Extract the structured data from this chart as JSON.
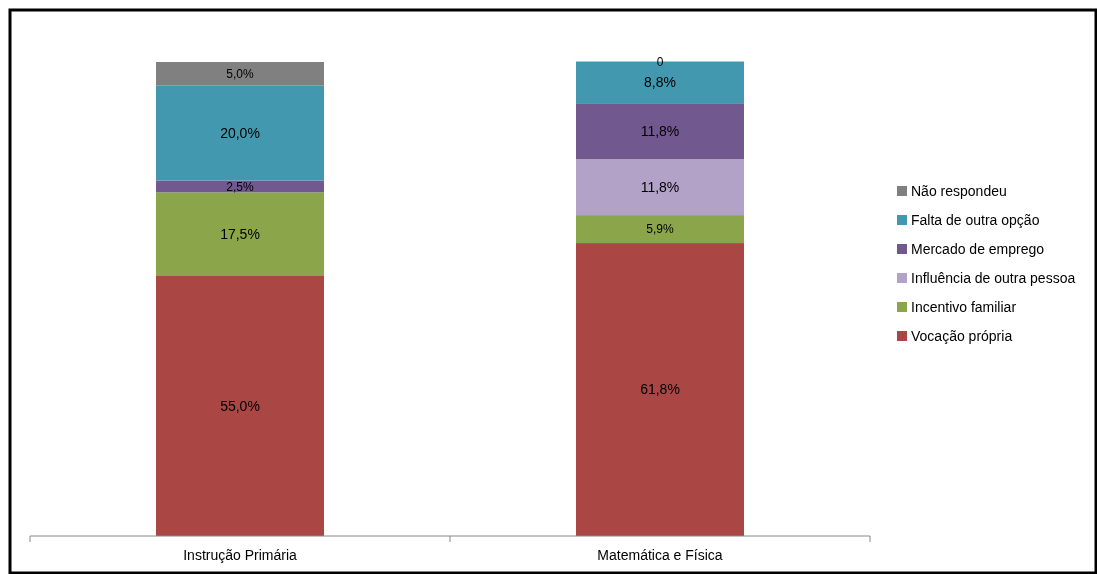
{
  "chart_data": {
    "type": "bar",
    "stacked": true,
    "categories": [
      "Instrução Primária",
      "Matemática e Física"
    ],
    "ylim": [
      0,
      100
    ],
    "tick_labels": "x",
    "legend": "right",
    "series": [
      {
        "name": "Vocação própria",
        "color": "#aa4644",
        "values": [
          55.0,
          61.8
        ],
        "value_labels": [
          "55,0%",
          "61,8%"
        ]
      },
      {
        "name": "Incentivo familiar",
        "color": "#8ba54a",
        "values": [
          17.5,
          5.9
        ],
        "value_labels": [
          "17,5%",
          "5,9%"
        ]
      },
      {
        "name": "Influência de outra pessoa",
        "color": "#b3a2c7",
        "values": [
          0,
          11.8
        ],
        "value_labels": [
          null,
          "11,8%"
        ]
      },
      {
        "name": "Mercado de emprego",
        "color": "#71588f",
        "values": [
          2.5,
          11.8
        ],
        "value_labels": [
          "2,5%",
          "11,8%"
        ]
      },
      {
        "name": "Falta de outra opção",
        "color": "#4198af",
        "values": [
          20.0,
          8.8
        ],
        "value_labels": [
          "20,0%",
          "8,8%"
        ]
      },
      {
        "name": "Não respondeu",
        "color": "#808080",
        "values": [
          5.0,
          0
        ],
        "value_labels": [
          "5,0%",
          "0"
        ]
      }
    ]
  }
}
